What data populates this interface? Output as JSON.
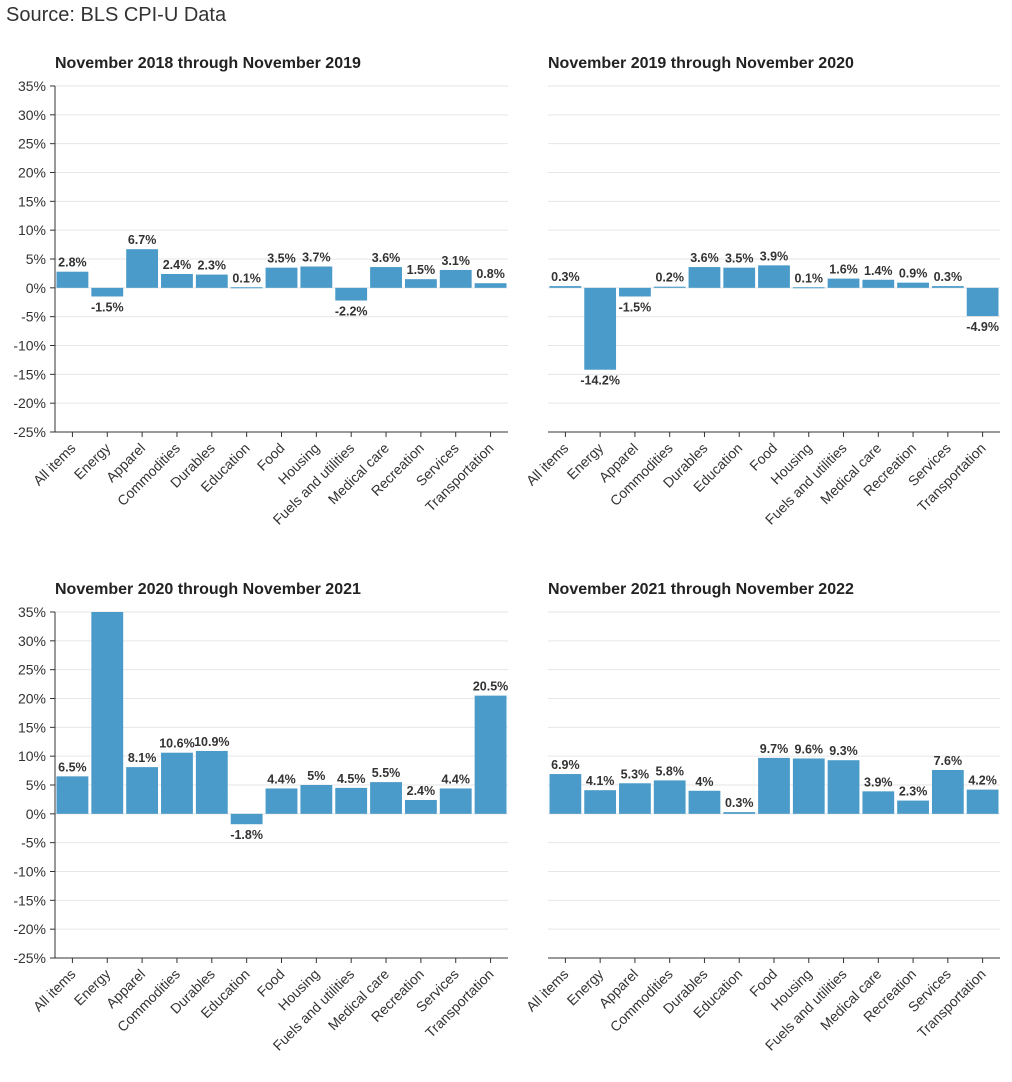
{
  "source": "Source: BLS CPI-U Data",
  "colors": {
    "bar": "#4a9bc9",
    "grid": "#e6e6e6",
    "axis": "#333333"
  },
  "chart_data": [
    {
      "type": "bar",
      "title": "November 2018 through November 2019",
      "categories": [
        "All items",
        "Energy",
        "Apparel",
        "Commodities",
        "Durables",
        "Education",
        "Food",
        "Housing",
        "Fuels and utilities",
        "Medical care",
        "Recreation",
        "Services",
        "Transportation"
      ],
      "values": [
        2.8,
        -1.5,
        6.7,
        2.4,
        2.3,
        0.1,
        3.5,
        3.7,
        -2.2,
        3.6,
        1.5,
        3.1,
        0.8
      ],
      "labels": [
        "2.8%",
        "-1.5%",
        "6.7%",
        "2.4%",
        "2.3%",
        "0.1%",
        "3.5%",
        "3.7%",
        "-2.2%",
        "3.6%",
        "1.5%",
        "3.1%",
        "0.8%"
      ],
      "ylim": [
        -25,
        35
      ],
      "yticks": [
        "-25%",
        "-20%",
        "-15%",
        "-10%",
        "-5%",
        "0%",
        "5%",
        "10%",
        "15%",
        "20%",
        "25%",
        "30%",
        "35%"
      ],
      "show_yaxis": true,
      "grid": true
    },
    {
      "type": "bar",
      "title": "November 2019 through November 2020",
      "categories": [
        "All items",
        "Energy",
        "Apparel",
        "Commodities",
        "Durables",
        "Education",
        "Food",
        "Housing",
        "Fuels and utilities",
        "Medical care",
        "Recreation",
        "Services",
        "Transportation"
      ],
      "values": [
        0.3,
        -14.2,
        -1.5,
        0.2,
        3.6,
        3.5,
        3.9,
        0.1,
        1.6,
        1.4,
        0.9,
        0.3,
        -4.9
      ],
      "labels": [
        "0.3%",
        "-14.2%",
        "-1.5%",
        "0.2%",
        "3.6%",
        "3.5%",
        "3.9%",
        "0.1%",
        "1.6%",
        "1.4%",
        "0.9%",
        "0.3%",
        "-4.9%"
      ],
      "ylim": [
        -25,
        35
      ],
      "yticks": [],
      "show_yaxis": false,
      "grid": true
    },
    {
      "type": "bar",
      "title": "November 2020 through November 2021",
      "categories": [
        "All items",
        "Energy",
        "Apparel",
        "Commodities",
        "Durables",
        "Education",
        "Food",
        "Housing",
        "Fuels and utilities",
        "Medical care",
        "Recreation",
        "Services",
        "Transportation"
      ],
      "values": [
        6.5,
        35,
        8.1,
        10.6,
        10.9,
        -1.8,
        4.4,
        5,
        4.5,
        5.5,
        2.4,
        4.4,
        20.5
      ],
      "labels": [
        "6.5%",
        "",
        "8.1%",
        "10.6%",
        "10.9%",
        "-1.8%",
        "4.4%",
        "5%",
        "4.5%",
        "5.5%",
        "2.4%",
        "4.4%",
        "20.5%"
      ],
      "ylim": [
        -25,
        35
      ],
      "yticks": [
        "-25%",
        "-20%",
        "-15%",
        "-10%",
        "-5%",
        "0%",
        "5%",
        "10%",
        "15%",
        "20%",
        "25%",
        "30%",
        "35%"
      ],
      "show_yaxis": true,
      "grid": true
    },
    {
      "type": "bar",
      "title": "November 2021 through November 2022",
      "categories": [
        "All items",
        "Energy",
        "Apparel",
        "Commodities",
        "Durables",
        "Education",
        "Food",
        "Housing",
        "Fuels and utilities",
        "Medical care",
        "Recreation",
        "Services",
        "Transportation"
      ],
      "values": [
        6.9,
        4.1,
        5.3,
        5.8,
        4,
        0.3,
        9.7,
        9.6,
        9.3,
        3.9,
        2.3,
        7.6,
        4.2
      ],
      "labels": [
        "6.9%",
        "4.1%",
        "5.3%",
        "5.8%",
        "4%",
        "0.3%",
        "9.7%",
        "9.6%",
        "9.3%",
        "3.9%",
        "2.3%",
        "7.6%",
        "4.2%"
      ],
      "ylim": [
        -25,
        35
      ],
      "yticks": [],
      "show_yaxis": false,
      "grid": true
    }
  ]
}
